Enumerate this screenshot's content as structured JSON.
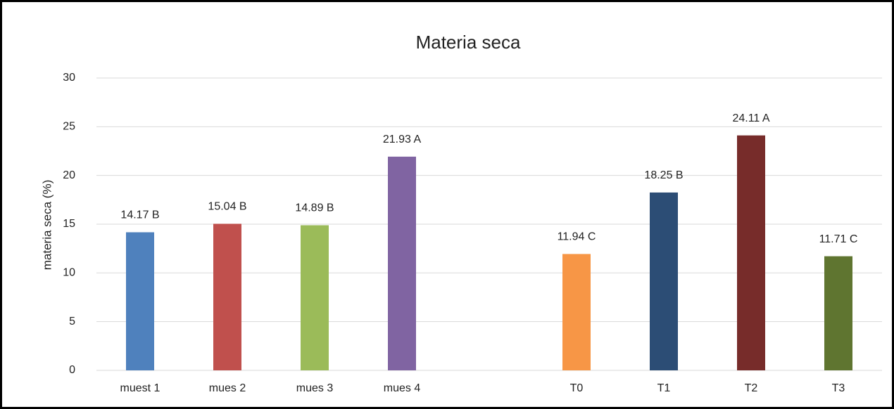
{
  "chart_data": {
    "type": "bar",
    "title": "Materia seca",
    "y_label": "materia seca (%)",
    "categories": [
      "muest 1",
      "mues 2",
      "mues 3",
      "mues 4",
      null,
      "T0",
      "T1",
      "T2",
      "T3"
    ],
    "values": [
      14.17,
      15.04,
      14.89,
      21.93,
      null,
      11.94,
      18.25,
      24.11,
      11.71
    ],
    "value_labels": [
      "14.17 B",
      "15.04 B",
      "14.89 B",
      "21.93 A",
      null,
      "11.94 C",
      "18.25 B",
      "24.11 A",
      "11.71 C"
    ],
    "colors": [
      "#4f81bd",
      "#c0504d",
      "#9bbb59",
      "#8064a2",
      null,
      "#f79646",
      "#2c4d75",
      "#772c2a",
      "#5f7530"
    ],
    "ylim": [
      0,
      30
    ],
    "yticks": [
      0,
      5,
      10,
      15,
      20,
      25,
      30
    ],
    "grid": true
  }
}
